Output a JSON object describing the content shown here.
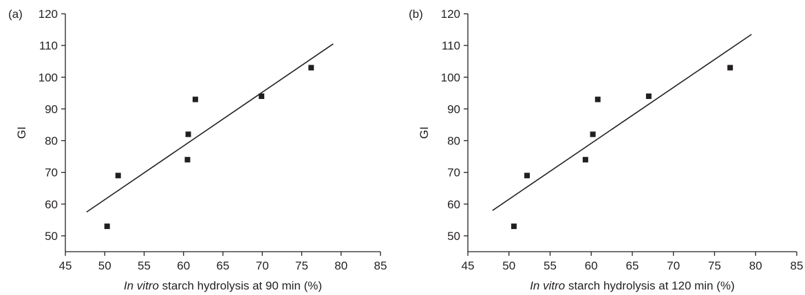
{
  "chart_data": [
    {
      "type": "scatter",
      "panel_label": "(a)",
      "xlabel_italic": "In vitro",
      "xlabel_rest": " starch hydrolysis at 90 min (%)",
      "ylabel": "GI",
      "xlim": [
        45,
        85
      ],
      "ylim": [
        45,
        120
      ],
      "xticks": [
        45,
        50,
        55,
        60,
        65,
        70,
        75,
        80,
        85
      ],
      "yticks": [
        50,
        60,
        70,
        80,
        90,
        100,
        110,
        120
      ],
      "grid": false,
      "points": [
        {
          "x": 50.3,
          "y": 53
        },
        {
          "x": 51.7,
          "y": 69
        },
        {
          "x": 60.5,
          "y": 74
        },
        {
          "x": 60.6,
          "y": 82
        },
        {
          "x": 61.5,
          "y": 93
        },
        {
          "x": 69.9,
          "y": 94
        },
        {
          "x": 76.2,
          "y": 103
        }
      ],
      "fit_line": {
        "x": [
          47.7,
          79.0
        ],
        "y": [
          57.5,
          110.5
        ]
      },
      "color": "#231f20"
    },
    {
      "type": "scatter",
      "panel_label": "(b)",
      "xlabel_italic": "In vitro",
      "xlabel_rest": " starch hydrolysis at 120 min (%)",
      "ylabel": "GI",
      "xlim": [
        45,
        85
      ],
      "ylim": [
        45,
        120
      ],
      "xticks": [
        45,
        50,
        55,
        60,
        65,
        70,
        75,
        80,
        85
      ],
      "yticks": [
        50,
        60,
        70,
        80,
        90,
        100,
        110,
        120
      ],
      "grid": false,
      "points": [
        {
          "x": 50.6,
          "y": 53
        },
        {
          "x": 52.2,
          "y": 69
        },
        {
          "x": 59.3,
          "y": 74
        },
        {
          "x": 60.2,
          "y": 82
        },
        {
          "x": 60.8,
          "y": 93
        },
        {
          "x": 67.0,
          "y": 94
        },
        {
          "x": 76.9,
          "y": 103
        }
      ],
      "fit_line": {
        "x": [
          48.0,
          79.5
        ],
        "y": [
          58.0,
          113.5
        ]
      },
      "color": "#231f20"
    }
  ]
}
